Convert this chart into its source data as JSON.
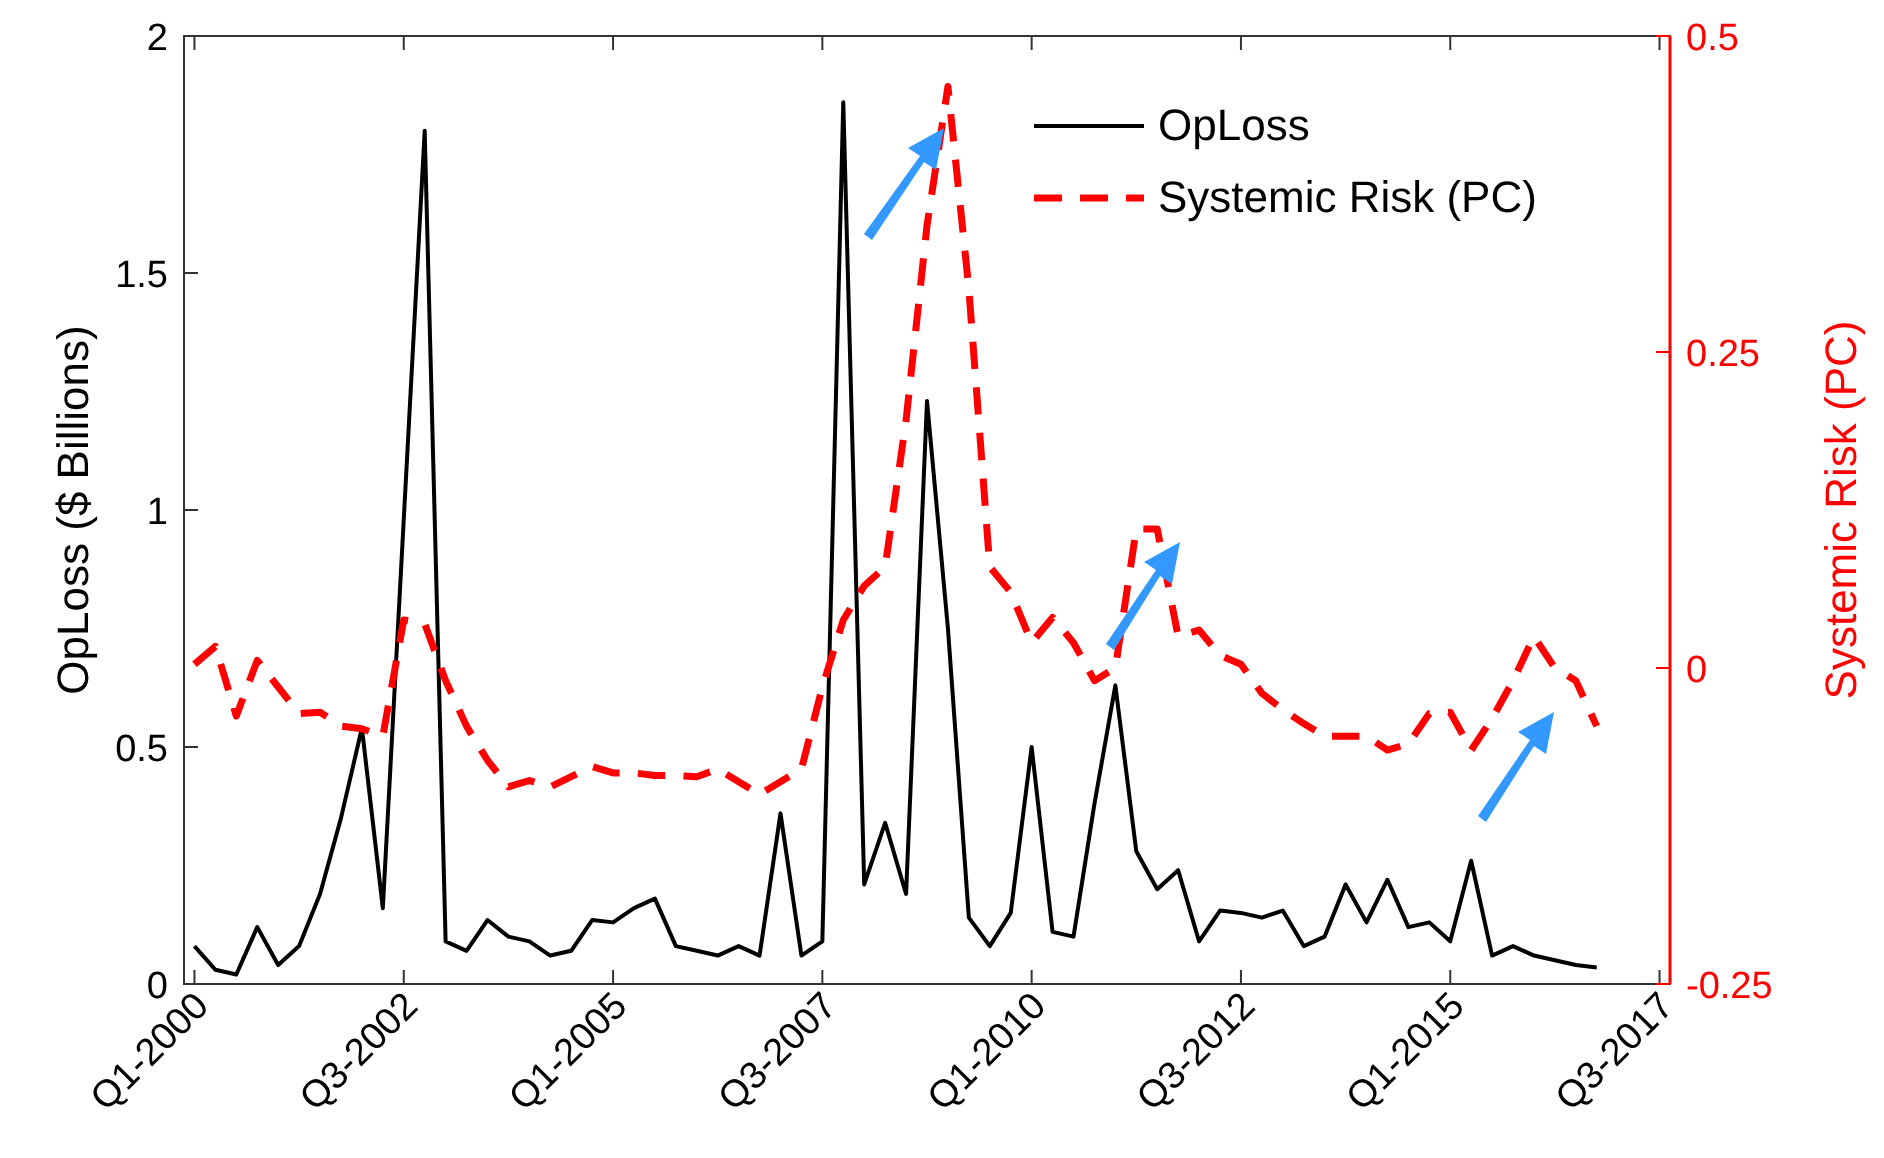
{
  "chart_data": {
    "type": "line",
    "ylabel": "OpLoss ($ Billions)",
    "y2label": "Systemic Risk (PC)",
    "categories": [
      "Q1-2000",
      null,
      null,
      null,
      null,
      null,
      null,
      null,
      null,
      null,
      "Q3-2002",
      null,
      null,
      null,
      null,
      null,
      null,
      null,
      null,
      null,
      "Q1-2005",
      null,
      null,
      null,
      null,
      null,
      null,
      null,
      null,
      null,
      "Q3-2007",
      null,
      null,
      null,
      null,
      null,
      null,
      null,
      null,
      null,
      "Q1-2010",
      null,
      null,
      null,
      null,
      null,
      null,
      null,
      null,
      null,
      "Q3-2012",
      null,
      null,
      null,
      null,
      null,
      null,
      null,
      null,
      null,
      "Q1-2015",
      null,
      null,
      null,
      null,
      null,
      null,
      null,
      null,
      null,
      "Q3-2017"
    ],
    "ylim": [
      0,
      2
    ],
    "yticks": [
      0,
      0.5,
      1,
      1.5,
      2
    ],
    "y2lim": [
      -0.25,
      0.5
    ],
    "y2ticks": [
      -0.25,
      0,
      0.25,
      0.5
    ],
    "legend": "top right",
    "series": [
      {
        "name": "OpLoss",
        "color": "#000000",
        "line_style": "solid",
        "values": [
          0.08,
          0.03,
          0.02,
          0.12,
          0.04,
          0.08,
          0.19,
          0.35,
          0.54,
          0.16,
          0.98,
          1.8,
          0.09,
          0.07,
          0.135,
          0.1,
          0.09,
          0.06,
          0.07,
          0.135,
          0.13,
          0.16,
          0.18,
          0.08,
          0.07,
          0.06,
          0.08,
          0.06,
          0.36,
          0.06,
          0.09,
          1.86,
          0.21,
          0.34,
          0.19,
          1.23,
          0.75,
          0.14,
          0.08,
          0.15,
          0.5,
          0.11,
          0.1,
          0.38,
          0.63,
          0.28,
          0.2,
          0.24,
          0.09,
          0.155,
          0.15,
          0.14,
          0.155,
          0.08,
          0.1,
          0.21,
          0.13,
          0.22,
          0.12,
          0.13,
          0.09,
          0.26,
          0.06,
          0.08,
          0.06,
          0.05,
          0.04,
          0.035,
          null,
          null,
          null
        ]
      },
      {
        "name": "Systemic Risk (PC)",
        "color": "#ff0000",
        "line_style": "dashed",
        "axis": "y2",
        "values": [
          0.003,
          0.017,
          -0.038,
          0.006,
          -0.015,
          -0.036,
          -0.035,
          -0.046,
          -0.048,
          -0.054,
          0.038,
          0.035,
          -0.01,
          -0.046,
          -0.073,
          -0.094,
          -0.089,
          -0.094,
          -0.086,
          -0.078,
          -0.083,
          -0.083,
          -0.085,
          -0.085,
          -0.086,
          -0.08,
          -0.09,
          -0.1,
          -0.09,
          -0.08,
          -0.015,
          0.038,
          0.065,
          0.08,
          0.196,
          0.35,
          0.46,
          0.3,
          0.08,
          0.06,
          0.02,
          0.04,
          0.02,
          -0.01,
          0,
          0.11,
          0.11,
          0.025,
          0.03,
          0.01,
          0.003,
          -0.02,
          -0.033,
          -0.044,
          -0.054,
          -0.054,
          -0.054,
          -0.065,
          -0.06,
          -0.036,
          -0.035,
          -0.065,
          -0.04,
          -0.01,
          0.025,
          0,
          -0.01,
          -0.046,
          null,
          null,
          null
        ]
      }
    ]
  }
}
